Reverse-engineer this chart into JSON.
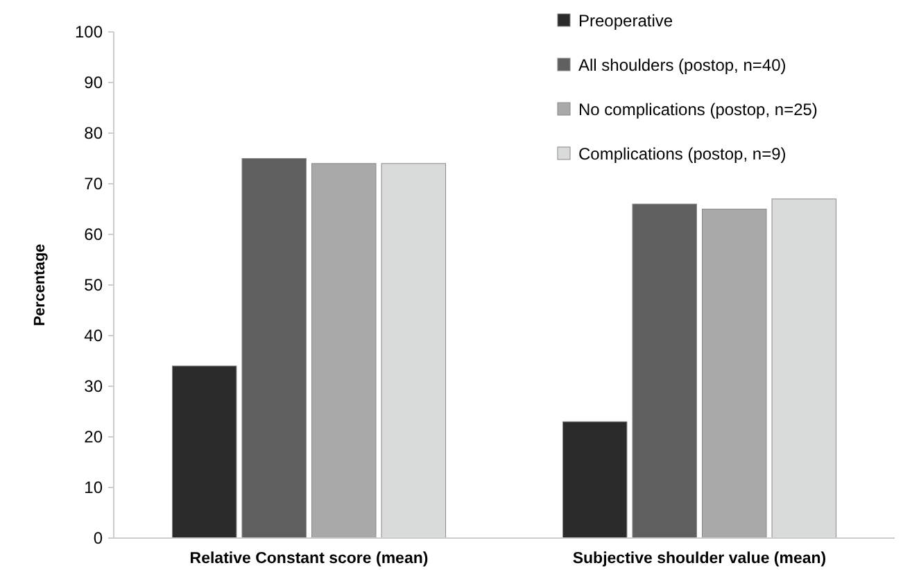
{
  "chart_data": {
    "type": "bar",
    "ylabel": "Percentage",
    "categories": [
      "Relative Constant score (mean)",
      "Subjective shoulder value (mean)"
    ],
    "series": [
      {
        "name": "Preoperative",
        "color": "#2b2b2b",
        "values": [
          34,
          23
        ]
      },
      {
        "name": "All shoulders (postop, n=40)",
        "color": "#5f5f5f",
        "values": [
          75,
          66
        ]
      },
      {
        "name": "No complications (postop, n=25)",
        "color": "#a9a9a9",
        "values": [
          74,
          65
        ]
      },
      {
        "name": "Complications (postop, n=9)",
        "color": "#d9dbdb",
        "values": [
          74,
          67
        ]
      }
    ],
    "ylim": [
      0,
      100
    ],
    "yticks": [
      0,
      10,
      20,
      30,
      40,
      50,
      60,
      70,
      80,
      90,
      100
    ],
    "grid": false,
    "legend": "top right"
  }
}
